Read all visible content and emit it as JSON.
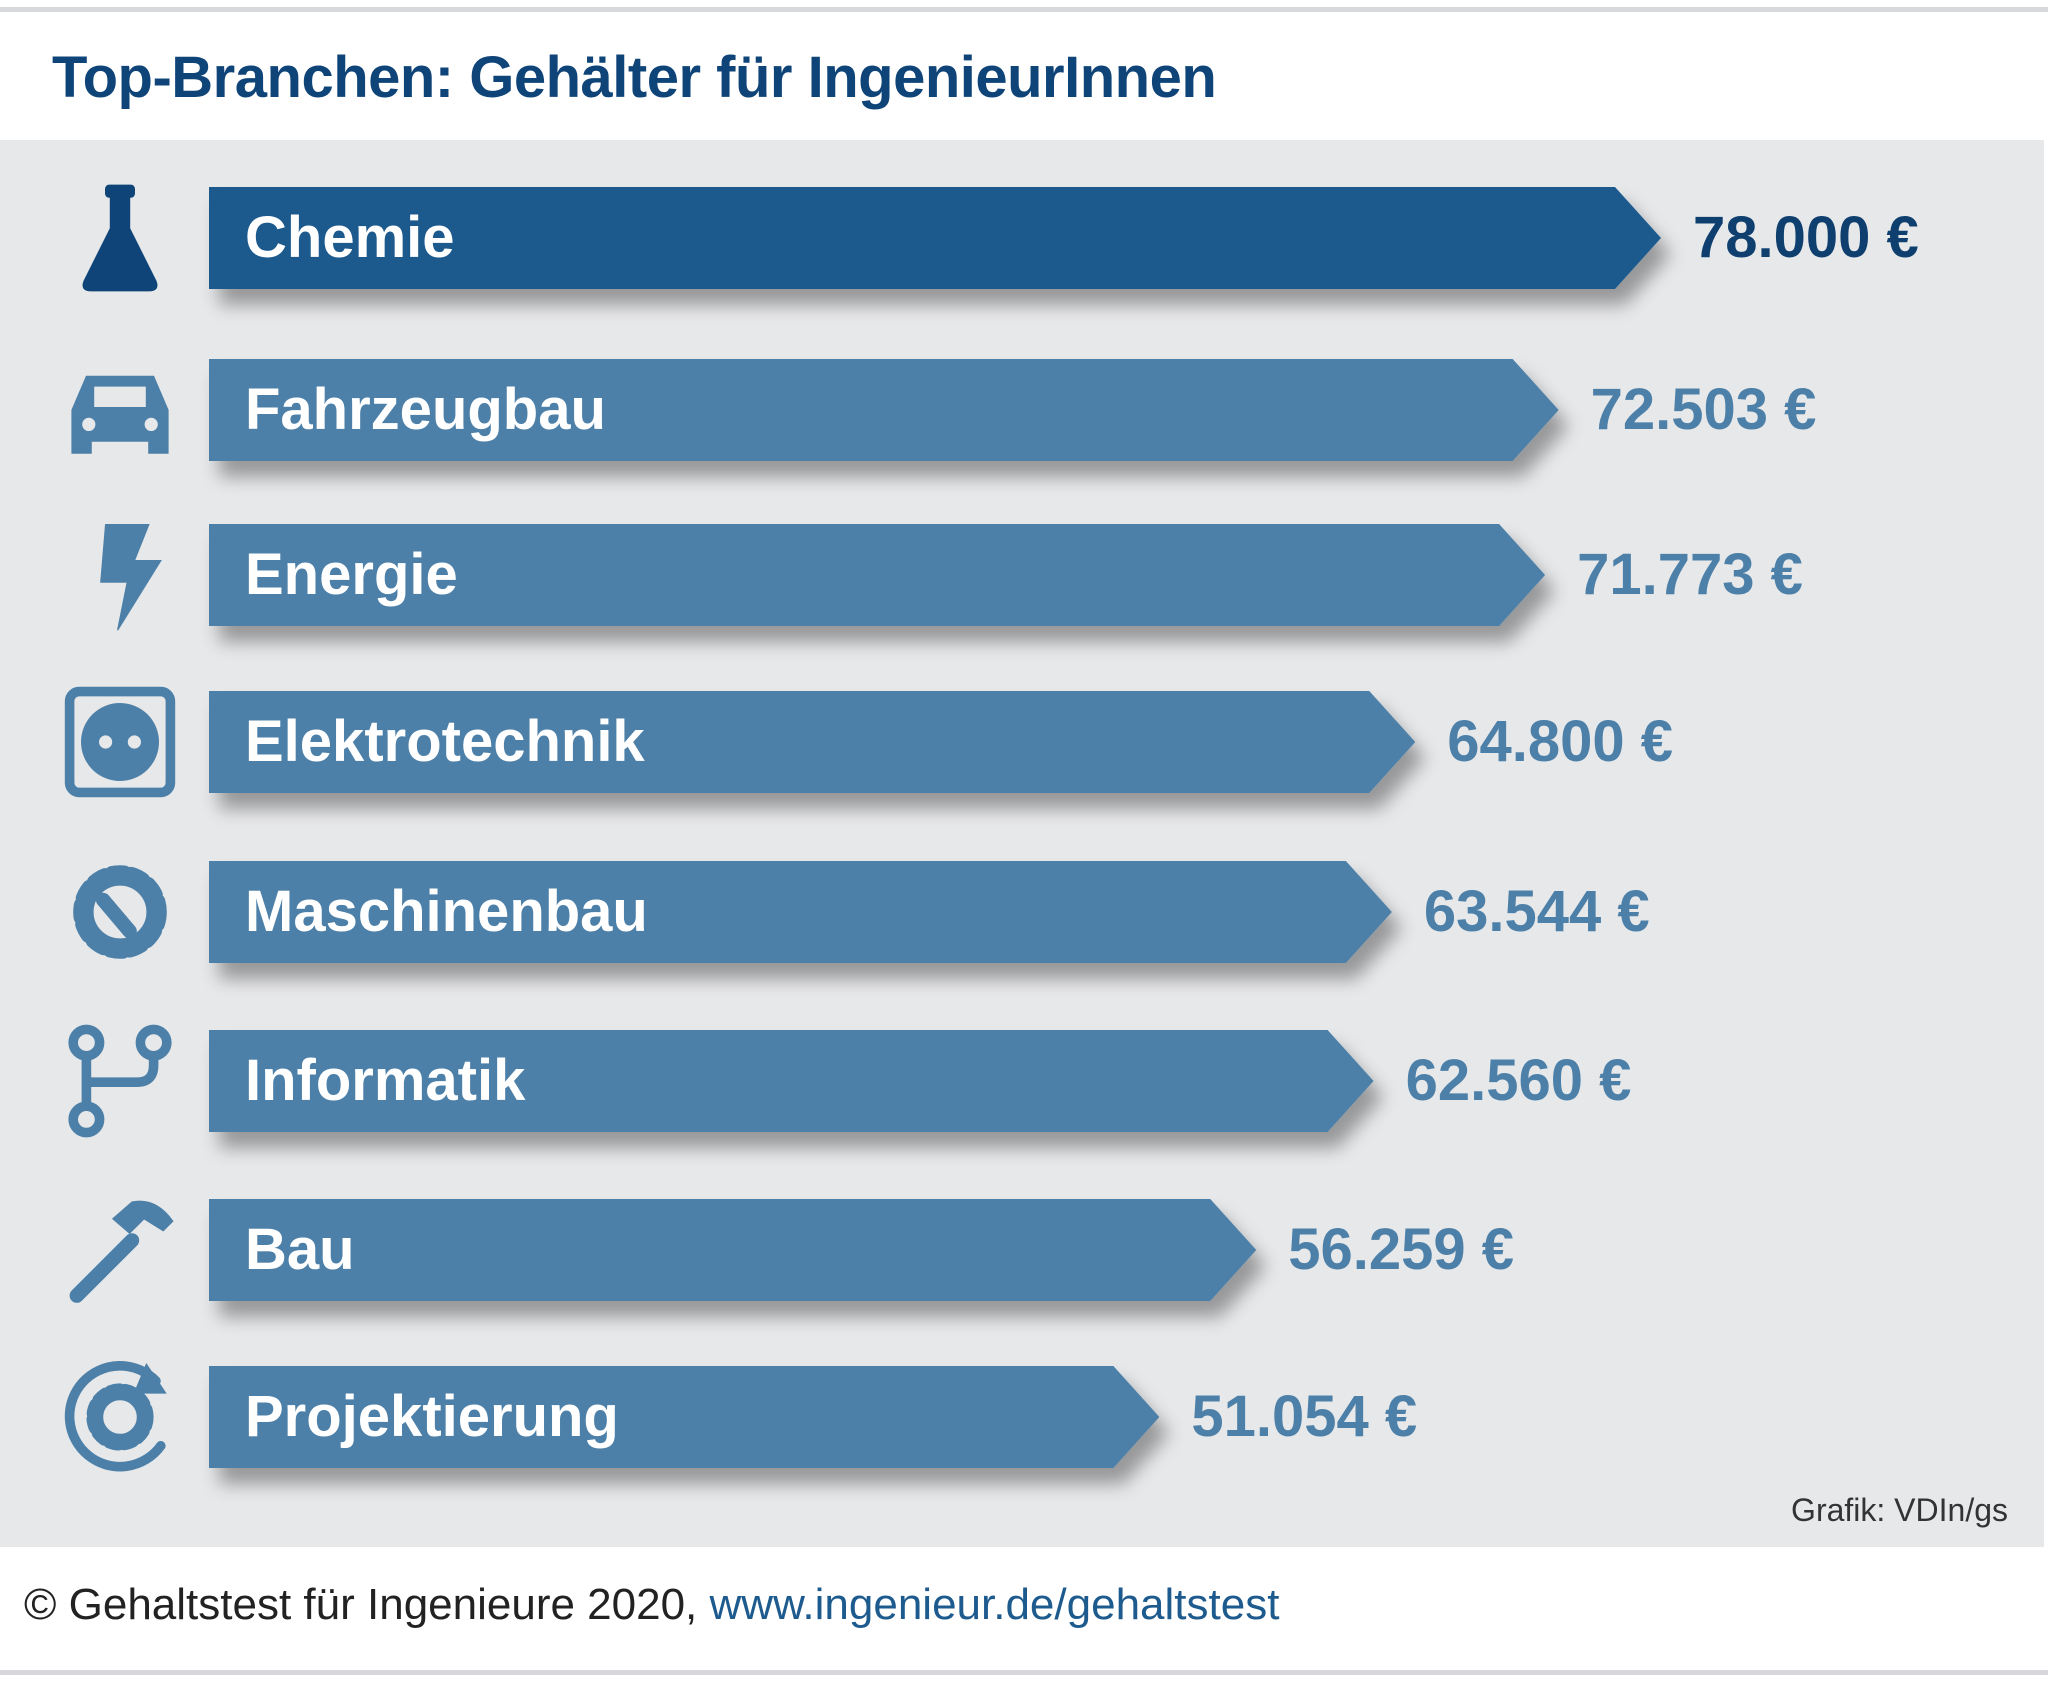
{
  "chart_data": {
    "type": "bar",
    "orientation": "horizontal",
    "title": "Top-Branchen: Gehälter für IngenieurInnen",
    "categories": [
      "Chemie",
      "Fahrzeugbau",
      "Energie",
      "Elektrotechnik",
      "Maschinenbau",
      "Informatik",
      "Bau",
      "Projektierung"
    ],
    "values": [
      78000,
      72503,
      71773,
      64800,
      63544,
      62560,
      56259,
      51054
    ],
    "value_labels": [
      "78.000 €",
      "72.503 €",
      "71.773 €",
      "64.800 €",
      "63.544 €",
      "62.560 €",
      "56.259 €",
      "51.054 €"
    ],
    "icons": [
      "flask-icon",
      "car-icon",
      "lightning-icon",
      "power-socket-icon",
      "gear-wrench-icon",
      "branch-icon",
      "hammer-icon",
      "gear-cycle-icon"
    ],
    "unit": "€",
    "grid": false,
    "colors": {
      "highlight": "#1d5a8e",
      "bar": "#4d80a8",
      "highlight_text": "#0f3f6e",
      "value_text": "#4d80a8",
      "title": "#0f4478"
    }
  },
  "credit": "Grafik: VDIn/gs",
  "footer": {
    "text": "© Gehaltstest für Ingenieure 2020, ",
    "link": "www.ingenieur.de/gehaltstest"
  }
}
